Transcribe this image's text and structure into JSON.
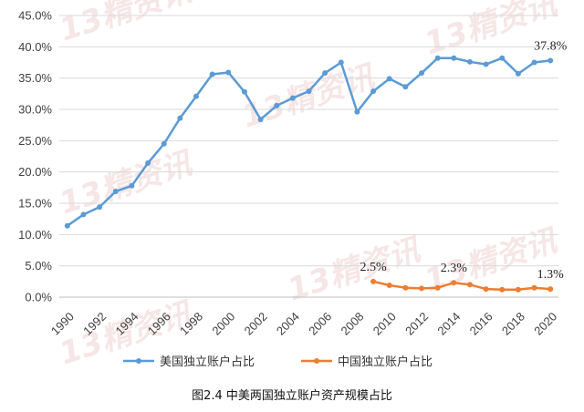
{
  "chart_data": {
    "type": "line",
    "title": "",
    "caption": "图2.4  中美两国独立账户资产规模占比",
    "ylim": [
      0,
      45
    ],
    "y_ticks": [
      "0.0%",
      "5.0%",
      "10.0%",
      "15.0%",
      "20.0%",
      "25.0%",
      "30.0%",
      "35.0%",
      "40.0%",
      "45.0%"
    ],
    "x_ticks": [
      "1990",
      "1992",
      "1994",
      "1996",
      "1998",
      "2000",
      "2002",
      "2004",
      "2006",
      "2008",
      "2010",
      "2012",
      "2014",
      "2016",
      "2018",
      "2020"
    ],
    "grid": true,
    "legend_position": "bottom",
    "series": [
      {
        "name": "美国独立账户占比",
        "color": "#5B9BD5",
        "x": [
          1990,
          1991,
          1992,
          1993,
          1994,
          1995,
          1996,
          1997,
          1998,
          1999,
          2000,
          2001,
          2002,
          2003,
          2004,
          2005,
          2006,
          2007,
          2008,
          2009,
          2010,
          2011,
          2012,
          2013,
          2014,
          2015,
          2016,
          2017,
          2018,
          2019,
          2020
        ],
        "values": [
          11.4,
          13.2,
          14.4,
          16.9,
          17.8,
          21.4,
          24.5,
          28.6,
          32.1,
          35.6,
          35.9,
          32.8,
          28.4,
          30.6,
          31.8,
          32.9,
          35.8,
          37.5,
          29.6,
          32.9,
          34.9,
          33.6,
          35.8,
          38.2,
          38.2,
          37.6,
          37.2,
          38.2,
          35.7,
          37.5,
          37.8
        ]
      },
      {
        "name": "中国独立账户占比",
        "color": "#ED7D31",
        "x": [
          2009,
          2010,
          2011,
          2012,
          2013,
          2014,
          2015,
          2016,
          2017,
          2018,
          2019,
          2020
        ],
        "values": [
          2.5,
          1.9,
          1.5,
          1.4,
          1.5,
          2.3,
          2.0,
          1.3,
          1.2,
          1.2,
          1.5,
          1.3
        ]
      }
    ],
    "annotations": [
      {
        "series": 0,
        "x": 2020,
        "text": "37.8%"
      },
      {
        "series": 1,
        "x": 2009,
        "text": "2.5%"
      },
      {
        "series": 1,
        "x": 2014,
        "text": "2.3%"
      },
      {
        "series": 1,
        "x": 2020,
        "text": "1.3%"
      }
    ],
    "watermark": "13精资讯"
  }
}
